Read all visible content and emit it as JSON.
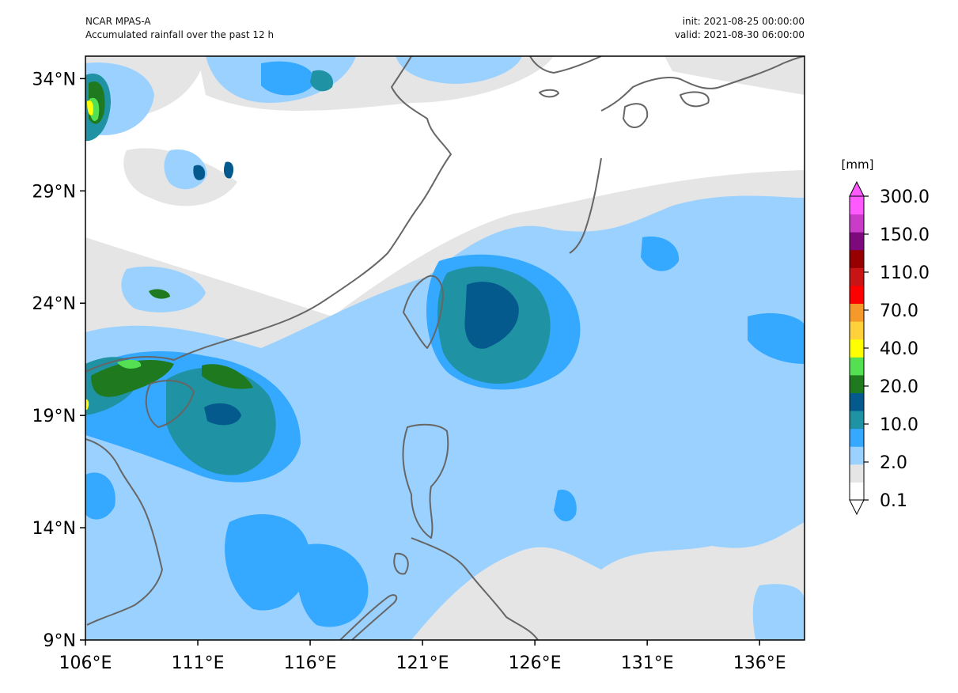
{
  "header": {
    "model": "NCAR MPAS-A",
    "description": "Accumulated rainfall over the past 12 h",
    "init": "init: 2021-08-25 00:00:00",
    "valid": "valid: 2021-08-30 06:00:00"
  },
  "map": {
    "projection": "PlateCarree",
    "lon_range": [
      106,
      138
    ],
    "lat_range": [
      9,
      35
    ],
    "x_ticks": [
      "106°E",
      "111°E",
      "116°E",
      "121°E",
      "126°E",
      "131°E",
      "136°E"
    ],
    "y_ticks": [
      "9°N",
      "14°N",
      "19°N",
      "24°N",
      "29°N",
      "34°N"
    ],
    "coastline_color": "#666666"
  },
  "colorbar": {
    "unit": "[mm]",
    "labels": [
      "0.1",
      "2.0",
      "10.0",
      "20.0",
      "40.0",
      "70.0",
      "110.0",
      "150.0",
      "300.0"
    ],
    "colors": [
      "#ffffff",
      "#e5e5e5",
      "#9bd1ff",
      "#35a8ff",
      "#1f92a3",
      "#045a8d",
      "#1f7a1f",
      "#54e052",
      "#ffff00",
      "#ffd23c",
      "#f59a2a",
      "#ff0000",
      "#c81414",
      "#960000",
      "#7d097d",
      "#c83cc8",
      "#ff5aff"
    ],
    "extend": "both"
  }
}
